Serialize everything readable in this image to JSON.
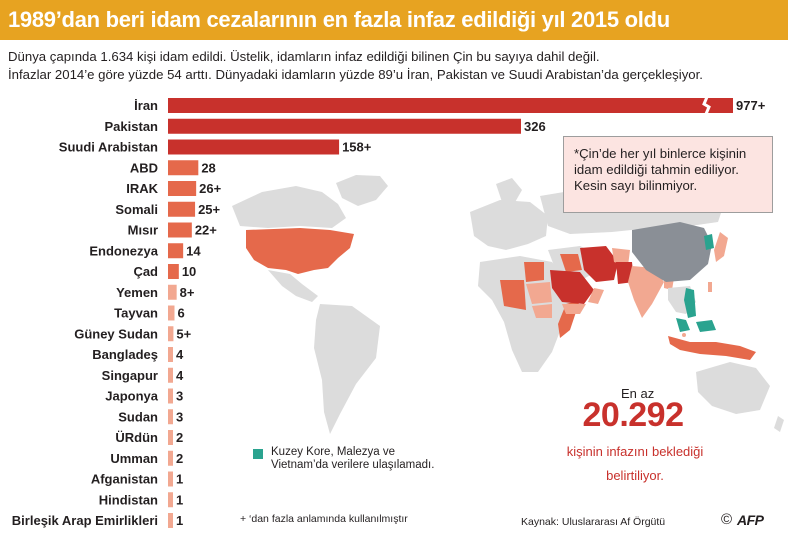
{
  "title": "1989’dan beri idam cezalarının en fazla infaz edildiği yıl 2015 oldu",
  "subtitle_line1": "Dünya çapında 1.634 kişi idam edildi. Üstelik, idamların infaz edildiği bilinen Çin bu sayıya dahil değil.",
  "subtitle_line2": "İnfazlar 2014’e göre yüzde 54 arttı. Dünyadaki idamların yüzde 89’u İran, Pakistan ve Suudi Arabistan’da gerçekleşiyor.",
  "note": {
    "line1": "*Çin’de her yıl binlerce kişinin",
    "line2": "idam edildiği tahmin ediliyor.",
    "line3": "Kesin sayı bilinmiyor."
  },
  "stat": {
    "prefix": "En az",
    "number": "20.292",
    "line1": "kişinin infazını beklediği",
    "line2": "belirtiliyor."
  },
  "legend": {
    "line1": "Kuzey Kore, Malezya ve",
    "line2": "Vietnam’da verilere ulaşılamadı.",
    "color": "#2aa38f"
  },
  "footnote": "+ ‘dan fazla anlamında kullanılmıştır",
  "source": "Kaynak: Uluslararası Af Örgütü",
  "copyright": "©",
  "logo": "AFP",
  "colors": {
    "title_bg": "#e7a321",
    "tier1": "#c8312c",
    "tier2": "#e5694b",
    "tier3": "#f2a891",
    "no_data": "#2aa38f",
    "china": "#8a8f96",
    "land": "#dcdcdc",
    "stat": "#c8312c"
  },
  "chart_data": {
    "type": "bar",
    "orientation": "horizontal",
    "axis_break": "İran",
    "categories": [
      "İran",
      "Pakistan",
      "Suudi Arabistan",
      "ABD",
      "IRAK",
      "Somali",
      "Mısır",
      "Endonezya",
      "Çad",
      "Yemen",
      "Tayvan",
      "Güney Sudan",
      "Bangladeş",
      "Singapur",
      "Japonya",
      "Sudan",
      "ÜRdün",
      "Umman",
      "Afganistan",
      "Hindistan",
      "Birleşik Arap Emirlikleri"
    ],
    "values": [
      977,
      326,
      158,
      28,
      26,
      25,
      22,
      14,
      10,
      8,
      6,
      5,
      4,
      4,
      3,
      3,
      2,
      2,
      1,
      1,
      1
    ],
    "labels": [
      "977+",
      "326",
      "158+",
      "28",
      "26+",
      "25+",
      "22+",
      "14",
      "10",
      "8+",
      "6",
      "5+",
      "4",
      "4",
      "3",
      "3",
      "2",
      "2",
      "1",
      "1",
      "1"
    ],
    "tiers": [
      1,
      1,
      1,
      2,
      2,
      2,
      2,
      2,
      2,
      3,
      3,
      3,
      3,
      3,
      3,
      3,
      3,
      3,
      3,
      3,
      3
    ]
  }
}
